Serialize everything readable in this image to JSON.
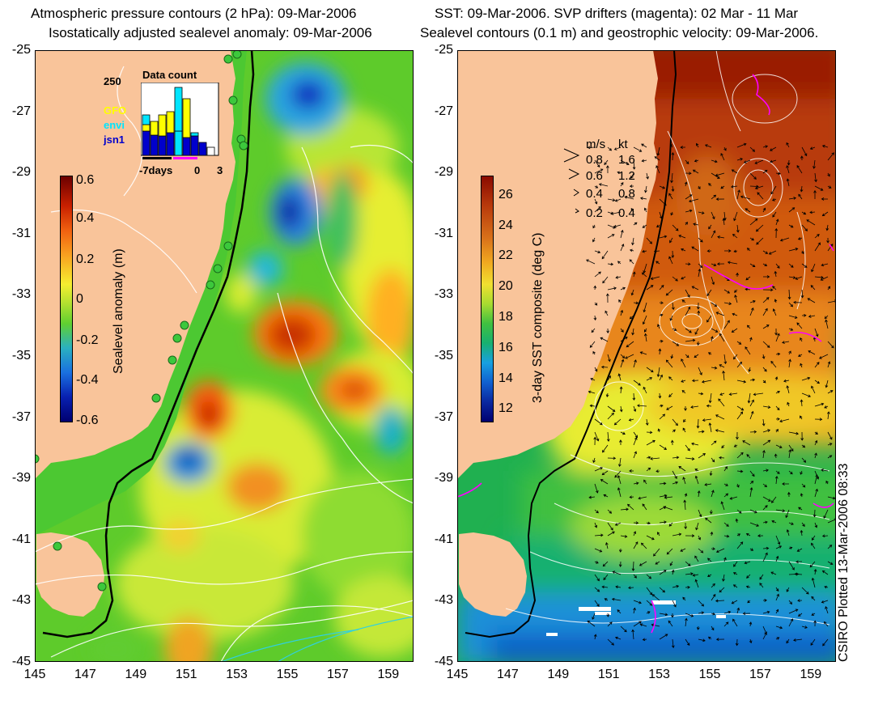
{
  "left_panel": {
    "title_line1": "Atmospheric pressure contours (2 hPa): 09-Mar-2006",
    "title_line2": "Isostatically adjusted sealevel anomaly: 09-Mar-2006",
    "colorbar": {
      "label": "Sealevel anomaly (m)",
      "ticks": [
        "0.6",
        "0.4",
        "0.2",
        "0",
        "-0.2",
        "-0.4",
        "-0.6"
      ],
      "range": [
        -0.6,
        0.6
      ]
    },
    "data_count": {
      "title": "Data count",
      "ymax_label": "250",
      "series": [
        {
          "name": "GFO",
          "color": "#ffff00"
        },
        {
          "name": "envi",
          "color": "#00e5ff"
        },
        {
          "name": "jsn1",
          "color": "#0000cc"
        }
      ],
      "xlabel_left": "-7days",
      "xlabel_mid": "0",
      "xlabel_right": "3"
    }
  },
  "right_panel": {
    "title_line1": "SST: 09-Mar-2006. SVP drifters (magenta): 02 Mar - 11 Mar",
    "title_line2": "Sealevel contours (0.1 m) and geostrophic velocity: 09-Mar-2006.",
    "colorbar": {
      "label": "3-day SST composite (deg C)",
      "ticks": [
        "26",
        "24",
        "22",
        "20",
        "18",
        "16",
        "14",
        "12"
      ],
      "range": [
        11,
        27
      ]
    },
    "velocity_legend": {
      "header_ms": "m/s",
      "header_kt": "kt",
      "rows": [
        {
          "ms": "0.8",
          "kt": "1.6"
        },
        {
          "ms": "0.6",
          "kt": "1.2"
        },
        {
          "ms": "0.4",
          "kt": "0.8"
        },
        {
          "ms": "0.2",
          "kt": "0.4"
        }
      ]
    },
    "credit": "CSIRO Plotted 13-Mar-2006 08:33"
  },
  "axes": {
    "y_ticks": [
      "-25",
      "-27",
      "-29",
      "-31",
      "-33",
      "-35",
      "-37",
      "-39",
      "-41",
      "-43",
      "-45"
    ],
    "x_ticks": [
      "145",
      "147",
      "149",
      "151",
      "153",
      "155",
      "157",
      "159"
    ],
    "lon_range": [
      145,
      160
    ],
    "lat_range": [
      -45,
      -25
    ]
  },
  "colors": {
    "land": "#f9c49a",
    "coast": "#000000",
    "contour": "#ffffff",
    "drifter": "#ff00ff"
  }
}
